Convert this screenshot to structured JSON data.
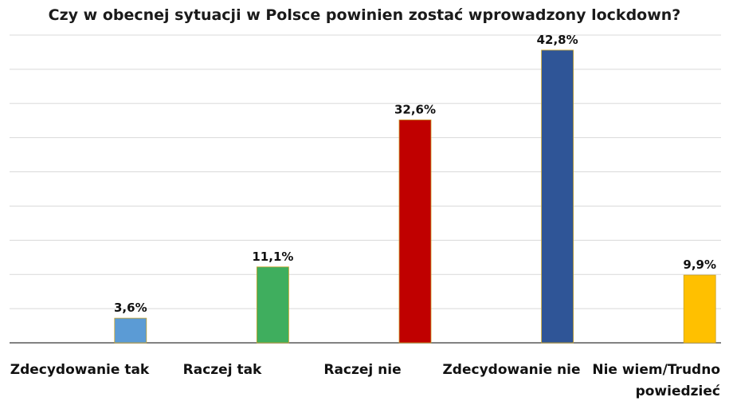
{
  "chart_data": {
    "type": "bar",
    "title": "Czy w obecnej sytuacji w Polsce powinien zostać wprowadzony lockdown?",
    "categories": [
      "Zdecydowanie tak",
      "Raczej tak",
      "Raczej nie",
      "Zdecydowanie nie",
      "Nie wiem/Trudno powiedzieć"
    ],
    "category_lines": [
      [
        "Zdecydowanie tak"
      ],
      [
        "Raczej tak"
      ],
      [
        "Raczej nie"
      ],
      [
        "Zdecydowanie nie"
      ],
      [
        "Nie wiem/Trudno",
        "powiedzieć"
      ]
    ],
    "values": [
      3.6,
      11.1,
      32.6,
      42.8,
      9.9
    ],
    "value_labels": [
      "3,6%",
      "11,1%",
      "32,6%",
      "42,8%",
      "9,9%"
    ],
    "colors": [
      "#5b9bd5",
      "#3fae5e",
      "#c00000",
      "#2f5597",
      "#ffc000"
    ],
    "ylim": [
      0,
      45
    ],
    "grid": true,
    "legend": "none"
  }
}
